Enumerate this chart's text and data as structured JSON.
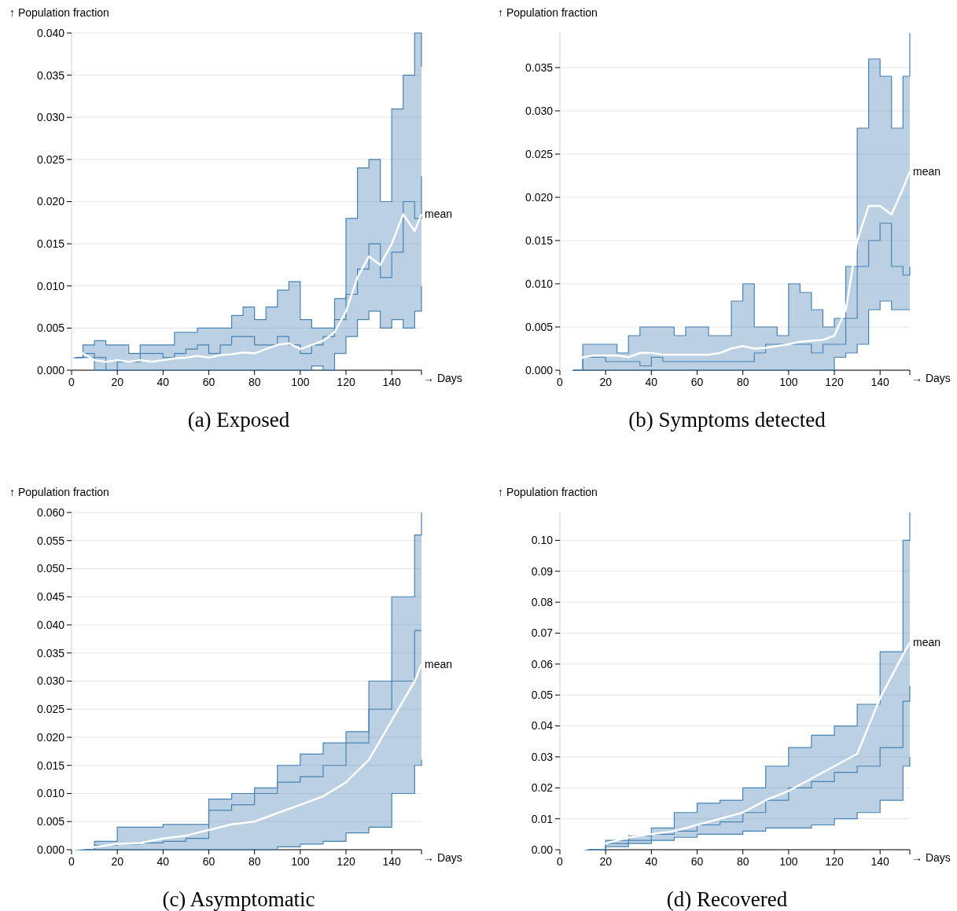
{
  "chart_data": [
    {
      "type": "line",
      "title": "(a) Exposed",
      "ylabel": "↑ Population fraction",
      "xlabel": "→ Days",
      "grid": "y",
      "x": [
        0,
        5,
        10,
        15,
        20,
        25,
        30,
        35,
        40,
        45,
        50,
        55,
        60,
        65,
        70,
        75,
        80,
        85,
        90,
        95,
        100,
        105,
        110,
        115,
        120,
        125,
        130,
        135,
        140,
        145,
        150,
        153
      ],
      "xlim": [
        0,
        153
      ],
      "xticks": [
        0,
        20,
        40,
        60,
        80,
        100,
        120,
        140
      ],
      "ylim": [
        0,
        0.04
      ],
      "yticks": [
        {
          "value": 0,
          "label": "0.000"
        },
        {
          "value": 0.005,
          "label": "0.005"
        },
        {
          "value": 0.01,
          "label": "0.010"
        },
        {
          "value": 0.015,
          "label": "0.015"
        },
        {
          "value": 0.02,
          "label": "0.020"
        },
        {
          "value": 0.025,
          "label": "0.025"
        },
        {
          "value": 0.03,
          "label": "0.030"
        },
        {
          "value": 0.035,
          "label": "0.035"
        },
        {
          "value": 0.04,
          "label": "0.040"
        }
      ],
      "series": [
        {
          "type": "step",
          "color": "#4682b4",
          "values": [
            0.0015,
            0.003,
            0.0035,
            0.003,
            0.003,
            0.002,
            0.003,
            0.003,
            0.003,
            0.0045,
            0.0045,
            0.005,
            0.005,
            0.005,
            0.0065,
            0.0075,
            0.006,
            0.0075,
            0.0095,
            0.0105,
            0.006,
            0.005,
            0.005,
            0.0085,
            0.018,
            0.024,
            0.025,
            0.02,
            0.031,
            0.035,
            0.04,
            0.036
          ]
        },
        {
          "type": "step",
          "color": "#4682b4",
          "values": [
            0.0015,
            0.0015,
            0,
            0,
            0,
            0,
            0,
            0,
            0,
            0,
            0,
            0,
            0,
            0,
            0,
            0,
            0,
            0,
            0,
            0,
            0,
            0.0005,
            0,
            0.002,
            0.004,
            0.006,
            0.007,
            0.005,
            0.006,
            0.005,
            0.007,
            0.01
          ]
        },
        {
          "type": "step",
          "color": "#4682b4",
          "values": [
            0.0015,
            0.002,
            0.0015,
            0,
            0.001,
            0.001,
            0.002,
            0.002,
            0.0015,
            0.002,
            0.0025,
            0.003,
            0.002,
            0.003,
            0.004,
            0.004,
            0.003,
            0.003,
            0.004,
            0.003,
            0.002,
            0.003,
            0.004,
            0.006,
            0.009,
            0.012,
            0.015,
            0.011,
            0.014,
            0.02,
            0.018,
            0.023
          ]
        },
        {
          "type": "line",
          "name": "mean",
          "color": "#ffffff",
          "values": [
            0.0015,
            0.002,
            0.0012,
            0.001,
            0.0012,
            0.001,
            0.0012,
            0.001,
            0.0012,
            0.0014,
            0.0015,
            0.0017,
            0.0015,
            0.0018,
            0.0019,
            0.0021,
            0.002,
            0.0025,
            0.003,
            0.0032,
            0.0025,
            0.003,
            0.0035,
            0.0045,
            0.007,
            0.011,
            0.0135,
            0.0125,
            0.015,
            0.0185,
            0.0165,
            0.0185
          ],
          "lower": [
            0.0015,
            0.0015,
            0,
            0,
            0,
            0,
            0,
            0,
            0,
            0,
            0,
            0,
            0,
            0,
            0,
            0,
            0,
            0,
            0,
            0,
            0,
            0.0005,
            0,
            0.002,
            0.004,
            0.006,
            0.007,
            0.005,
            0.006,
            0.005,
            0.007,
            0.01
          ],
          "upper": [
            0.0015,
            0.003,
            0.0035,
            0.003,
            0.003,
            0.002,
            0.003,
            0.003,
            0.003,
            0.0045,
            0.0045,
            0.005,
            0.005,
            0.005,
            0.0065,
            0.0075,
            0.006,
            0.0075,
            0.0095,
            0.0105,
            0.006,
            0.005,
            0.005,
            0.0085,
            0.018,
            0.024,
            0.025,
            0.02,
            0.031,
            0.035,
            0.04,
            0.036
          ]
        }
      ]
    },
    {
      "type": "line",
      "title": "(b) Symptoms detected",
      "ylabel": "↑ Population fraction",
      "xlabel": "→ Days",
      "grid": "y",
      "x": [
        0,
        5,
        10,
        15,
        20,
        25,
        30,
        35,
        40,
        45,
        50,
        55,
        60,
        65,
        70,
        75,
        80,
        85,
        90,
        95,
        100,
        105,
        110,
        115,
        120,
        125,
        130,
        135,
        140,
        145,
        150,
        153
      ],
      "xlim": [
        0,
        153
      ],
      "xticks": [
        0,
        20,
        40,
        60,
        80,
        100,
        120,
        140
      ],
      "ylim": [
        0,
        0.039
      ],
      "yticks": [
        {
          "value": 0,
          "label": "0.000"
        },
        {
          "value": 0.005,
          "label": "0.005"
        },
        {
          "value": 0.01,
          "label": "0.010"
        },
        {
          "value": 0.015,
          "label": "0.015"
        },
        {
          "value": 0.02,
          "label": "0.020"
        },
        {
          "value": 0.025,
          "label": "0.025"
        },
        {
          "value": 0.03,
          "label": "0.030"
        },
        {
          "value": 0.035,
          "label": "0.035"
        }
      ],
      "series": [
        {
          "type": "step",
          "color": "#4682b4",
          "values": [
            0,
            0,
            0.003,
            0.003,
            0.003,
            0.002,
            0.004,
            0.005,
            0.005,
            0.005,
            0.004,
            0.005,
            0.005,
            0.004,
            0.004,
            0.008,
            0.01,
            0.005,
            0.005,
            0.004,
            0.01,
            0.009,
            0.007,
            0.005,
            0.006,
            0.012,
            0.028,
            0.036,
            0.034,
            0.028,
            0.034,
            0.039
          ]
        },
        {
          "type": "step",
          "color": "#4682b4",
          "values": [
            0,
            0,
            0,
            0,
            0,
            0,
            0,
            0,
            0,
            0,
            0,
            0,
            0,
            0,
            0,
            0,
            0,
            0,
            0,
            0,
            0,
            0,
            0,
            0,
            0.0015,
            0.002,
            0.003,
            0.007,
            0.008,
            0.007,
            0.007,
            0.007
          ]
        },
        {
          "type": "step",
          "color": "#4682b4",
          "values": [
            0,
            0,
            0.0015,
            0.0015,
            0.001,
            0.001,
            0.001,
            0.0005,
            0.0015,
            0.001,
            0.001,
            0.001,
            0.001,
            0.001,
            0.001,
            0.001,
            0.001,
            0.002,
            0.003,
            0.003,
            0.003,
            0.003,
            0.002,
            0.003,
            0.003,
            0.006,
            0.012,
            0.015,
            0.017,
            0.012,
            0.011,
            0.012
          ]
        },
        {
          "type": "line",
          "name": "mean",
          "color": "#ffffff",
          "values": [
            0,
            0,
            0.0015,
            0.0017,
            0.0017,
            0.0017,
            0.0015,
            0.002,
            0.002,
            0.0018,
            0.0018,
            0.0018,
            0.0018,
            0.0018,
            0.002,
            0.0025,
            0.0028,
            0.0025,
            0.0026,
            0.0028,
            0.003,
            0.0033,
            0.0034,
            0.0035,
            0.004,
            0.007,
            0.015,
            0.019,
            0.019,
            0.018,
            0.021,
            0.023
          ],
          "lower": [
            0,
            0,
            0,
            0,
            0,
            0,
            0,
            0,
            0,
            0,
            0,
            0,
            0,
            0,
            0,
            0,
            0,
            0,
            0,
            0,
            0,
            0,
            0,
            0,
            0.0015,
            0.002,
            0.003,
            0.007,
            0.008,
            0.007,
            0.007,
            0.007
          ],
          "upper": [
            0,
            0,
            0.003,
            0.003,
            0.003,
            0.002,
            0.004,
            0.005,
            0.005,
            0.005,
            0.004,
            0.005,
            0.005,
            0.004,
            0.004,
            0.008,
            0.01,
            0.005,
            0.005,
            0.004,
            0.01,
            0.009,
            0.007,
            0.005,
            0.006,
            0.012,
            0.028,
            0.036,
            0.034,
            0.028,
            0.034,
            0.039
          ]
        }
      ]
    },
    {
      "type": "line",
      "title": "(c) Asymptomatic",
      "ylabel": "↑ Population fraction",
      "xlabel": "→ Days",
      "grid": "y",
      "x": [
        0,
        10,
        20,
        30,
        40,
        50,
        60,
        70,
        80,
        90,
        100,
        110,
        120,
        130,
        140,
        150,
        153
      ],
      "xlim": [
        0,
        153
      ],
      "xticks": [
        0,
        20,
        40,
        60,
        80,
        100,
        120,
        140
      ],
      "ylim": [
        0,
        0.06
      ],
      "yticks": [
        {
          "value": 0,
          "label": "0.000"
        },
        {
          "value": 0.005,
          "label": "0.005"
        },
        {
          "value": 0.01,
          "label": "0.010"
        },
        {
          "value": 0.015,
          "label": "0.015"
        },
        {
          "value": 0.02,
          "label": "0.020"
        },
        {
          "value": 0.025,
          "label": "0.025"
        },
        {
          "value": 0.03,
          "label": "0.030"
        },
        {
          "value": 0.035,
          "label": "0.035"
        },
        {
          "value": 0.04,
          "label": "0.040"
        },
        {
          "value": 0.045,
          "label": "0.045"
        },
        {
          "value": 0.05,
          "label": "0.050"
        },
        {
          "value": 0.055,
          "label": "0.055"
        },
        {
          "value": 0.06,
          "label": "0.060"
        }
      ],
      "series": [
        {
          "type": "step",
          "color": "#4682b4",
          "values": [
            0,
            0.0015,
            0.004,
            0.004,
            0.0045,
            0.0045,
            0.009,
            0.01,
            0.011,
            0.015,
            0.017,
            0.019,
            0.021,
            0.03,
            0.045,
            0.056,
            0.06
          ]
        },
        {
          "type": "step",
          "color": "#4682b4",
          "values": [
            0,
            0,
            0,
            0,
            0,
            0,
            0,
            0,
            0,
            0.0005,
            0.001,
            0.0015,
            0.003,
            0.004,
            0.01,
            0.015,
            0.016
          ]
        },
        {
          "type": "step",
          "color": "#4682b4",
          "values": [
            0,
            0.0008,
            0.001,
            0.0012,
            0.0015,
            0.002,
            0.007,
            0.008,
            0.01,
            0.012,
            0.013,
            0.015,
            0.019,
            0.025,
            0.03,
            0.039,
            0.039
          ]
        },
        {
          "type": "line",
          "name": "mean",
          "color": "#ffffff",
          "values": [
            0,
            0.0005,
            0.001,
            0.0012,
            0.002,
            0.0025,
            0.0035,
            0.0045,
            0.005,
            0.0065,
            0.008,
            0.0095,
            0.012,
            0.016,
            0.023,
            0.03,
            0.033
          ],
          "lower": [
            0,
            0,
            0,
            0,
            0,
            0,
            0,
            0,
            0,
            0.0005,
            0.001,
            0.0015,
            0.003,
            0.004,
            0.01,
            0.015,
            0.016
          ],
          "upper": [
            0,
            0.0015,
            0.004,
            0.004,
            0.0045,
            0.0045,
            0.009,
            0.01,
            0.011,
            0.015,
            0.017,
            0.019,
            0.021,
            0.03,
            0.045,
            0.056,
            0.06
          ]
        }
      ]
    },
    {
      "type": "line",
      "title": "(d) Recovered",
      "ylabel": "↑ Population fraction",
      "xlabel": "→ Days",
      "grid": "y",
      "x": [
        0,
        10,
        20,
        30,
        40,
        50,
        60,
        70,
        80,
        90,
        100,
        110,
        120,
        130,
        140,
        150,
        153
      ],
      "xlim": [
        0,
        153
      ],
      "xticks": [
        0,
        20,
        40,
        60,
        80,
        100,
        120,
        140
      ],
      "ylim": [
        0,
        0.109
      ],
      "yticks": [
        {
          "value": 0,
          "label": "0.00"
        },
        {
          "value": 0.01,
          "label": "0.01"
        },
        {
          "value": 0.02,
          "label": "0.02"
        },
        {
          "value": 0.03,
          "label": "0.03"
        },
        {
          "value": 0.04,
          "label": "0.04"
        },
        {
          "value": 0.05,
          "label": "0.05"
        },
        {
          "value": 0.06,
          "label": "0.06"
        },
        {
          "value": 0.07,
          "label": "0.07"
        },
        {
          "value": 0.08,
          "label": "0.08"
        },
        {
          "value": 0.09,
          "label": "0.09"
        },
        {
          "value": 0.1,
          "label": "0.10"
        }
      ],
      "series": [
        {
          "type": "step",
          "color": "#4682b4",
          "values": [
            0,
            0,
            0.003,
            0.0045,
            0.007,
            0.012,
            0.015,
            0.016,
            0.02,
            0.027,
            0.033,
            0.037,
            0.04,
            0.047,
            0.064,
            0.1,
            0.109
          ]
        },
        {
          "type": "step",
          "color": "#4682b4",
          "values": [
            0,
            0,
            0.001,
            0.002,
            0.003,
            0.004,
            0.005,
            0.005,
            0.006,
            0.007,
            0.007,
            0.008,
            0.01,
            0.012,
            0.016,
            0.027,
            0.03
          ]
        },
        {
          "type": "step",
          "color": "#4682b4",
          "values": [
            0,
            0,
            0.002,
            0.003,
            0.005,
            0.006,
            0.008,
            0.009,
            0.012,
            0.016,
            0.02,
            0.022,
            0.025,
            0.027,
            0.033,
            0.048,
            0.053
          ]
        },
        {
          "type": "line",
          "name": "mean",
          "color": "#ffffff",
          "values": [
            0,
            0,
            0.002,
            0.004,
            0.005,
            0.006,
            0.008,
            0.01,
            0.012,
            0.016,
            0.019,
            0.023,
            0.027,
            0.031,
            0.049,
            0.063,
            0.067
          ],
          "lower": [
            0,
            0,
            0.001,
            0.002,
            0.003,
            0.004,
            0.005,
            0.005,
            0.006,
            0.007,
            0.007,
            0.008,
            0.01,
            0.012,
            0.016,
            0.027,
            0.03
          ],
          "upper": [
            0,
            0,
            0.003,
            0.0045,
            0.007,
            0.012,
            0.015,
            0.016,
            0.02,
            0.027,
            0.033,
            0.037,
            0.04,
            0.047,
            0.064,
            0.1,
            0.109
          ]
        }
      ]
    }
  ]
}
